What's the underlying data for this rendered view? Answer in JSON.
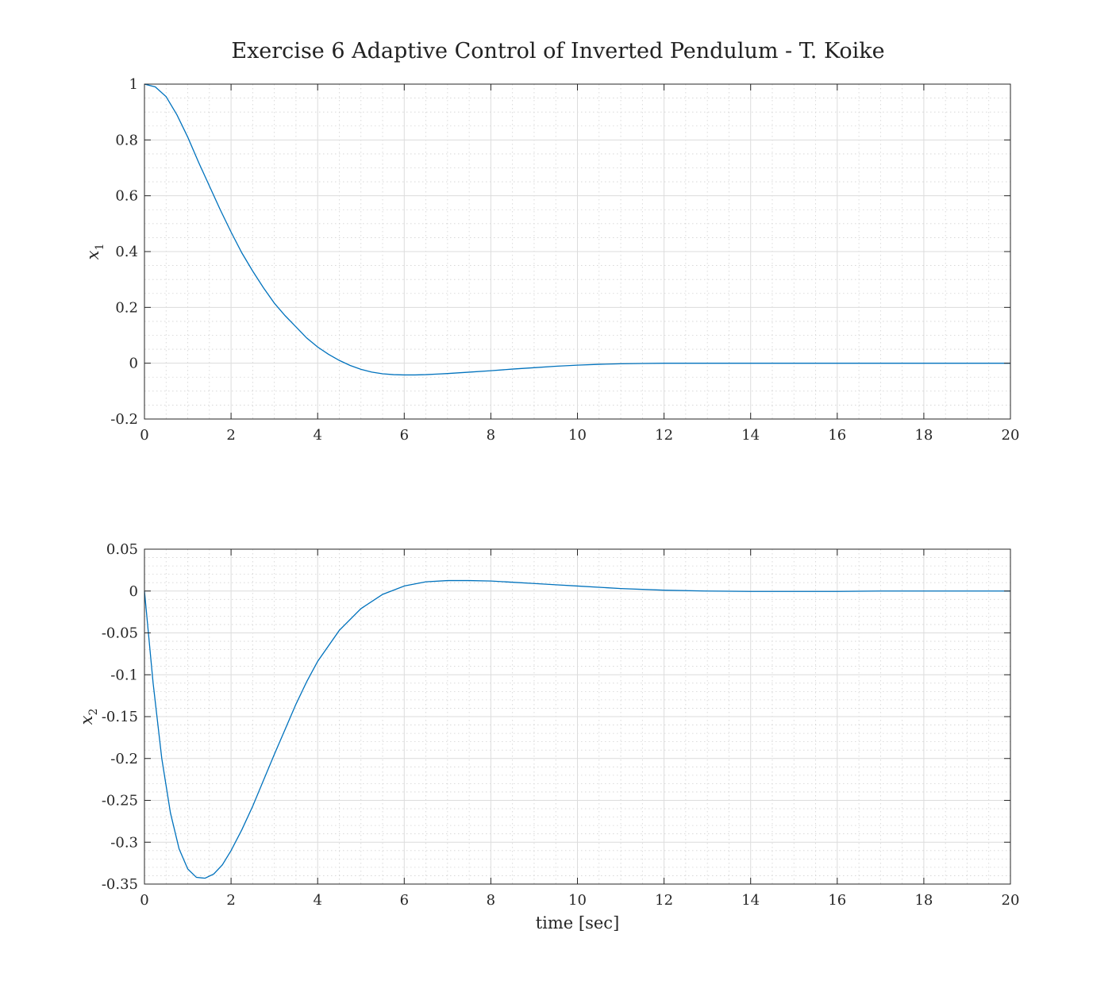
{
  "figure": {
    "title": "Exercise 6 Adaptive Control of Inverted Pendulum - T. Koike"
  },
  "chart_data": [
    {
      "type": "line",
      "title": "",
      "xlabel": "",
      "ylabel": "x",
      "ylabel_subscript": "1",
      "xlim": [
        0,
        20
      ],
      "ylim": [
        -0.2,
        1
      ],
      "xticks": [
        "0",
        "2",
        "4",
        "6",
        "8",
        "10",
        "12",
        "14",
        "16",
        "18",
        "20"
      ],
      "yticks": [
        "-0.2",
        "0",
        "0.2",
        "0.4",
        "0.6",
        "0.8",
        "1"
      ],
      "grid": true,
      "minor_grid": true,
      "color": "#0072BD",
      "series": [
        {
          "x": [
            0,
            0.25,
            0.5,
            0.75,
            1.0,
            1.25,
            1.5,
            1.75,
            2.0,
            2.25,
            2.5,
            2.75,
            3.0,
            3.25,
            3.5,
            3.75,
            4.0,
            4.25,
            4.5,
            4.75,
            5.0,
            5.25,
            5.5,
            5.75,
            6.0,
            6.25,
            6.5,
            6.75,
            7.0,
            7.5,
            8.0,
            8.5,
            9.0,
            9.5,
            10.0,
            10.5,
            11.0,
            11.5,
            12.0,
            12.5,
            13.0,
            14.0,
            15.0,
            16.0,
            17.0,
            18.0,
            19.0,
            20.0
          ],
          "y": [
            1.0,
            0.99,
            0.955,
            0.89,
            0.81,
            0.72,
            0.635,
            0.55,
            0.47,
            0.395,
            0.33,
            0.27,
            0.215,
            0.17,
            0.13,
            0.09,
            0.058,
            0.032,
            0.01,
            -0.008,
            -0.022,
            -0.032,
            -0.038,
            -0.041,
            -0.042,
            -0.042,
            -0.041,
            -0.039,
            -0.037,
            -0.032,
            -0.027,
            -0.021,
            -0.016,
            -0.011,
            -0.007,
            -0.004,
            -0.002,
            -0.001,
            0.0,
            0.0,
            0.0,
            0.0,
            0.0,
            0.0,
            0.0,
            0.0,
            0.0,
            0.0
          ]
        }
      ]
    },
    {
      "type": "line",
      "title": "",
      "xlabel": "time [sec]",
      "ylabel": "x",
      "ylabel_subscript": "2",
      "xlim": [
        0,
        20
      ],
      "ylim": [
        -0.35,
        0.05
      ],
      "xticks": [
        "0",
        "2",
        "4",
        "6",
        "8",
        "10",
        "12",
        "14",
        "16",
        "18",
        "20"
      ],
      "yticks": [
        "-0.35",
        "-0.3",
        "-0.25",
        "-0.2",
        "-0.15",
        "-0.1",
        "-0.05",
        "0",
        "0.05"
      ],
      "grid": true,
      "minor_grid": true,
      "color": "#0072BD",
      "series": [
        {
          "x": [
            0,
            0.2,
            0.4,
            0.6,
            0.8,
            1.0,
            1.2,
            1.4,
            1.6,
            1.8,
            2.0,
            2.25,
            2.5,
            2.75,
            3.0,
            3.25,
            3.5,
            3.75,
            4.0,
            4.5,
            5.0,
            5.5,
            6.0,
            6.5,
            7.0,
            7.5,
            8.0,
            8.5,
            9.0,
            9.5,
            10.0,
            11.0,
            12.0,
            13.0,
            14.0,
            15.0,
            16.0,
            17.0,
            18.0,
            19.0,
            20.0
          ],
          "y": [
            0.0,
            -0.11,
            -0.2,
            -0.265,
            -0.308,
            -0.332,
            -0.342,
            -0.343,
            -0.338,
            -0.327,
            -0.31,
            -0.285,
            -0.257,
            -0.226,
            -0.195,
            -0.165,
            -0.135,
            -0.108,
            -0.084,
            -0.047,
            -0.021,
            -0.004,
            0.006,
            0.011,
            0.0125,
            0.0125,
            0.012,
            0.0105,
            0.009,
            0.0075,
            0.006,
            0.003,
            0.001,
            0.0,
            -0.0005,
            -0.0005,
            -0.0005,
            0.0,
            0.0,
            0.0,
            0.0
          ]
        }
      ]
    }
  ]
}
